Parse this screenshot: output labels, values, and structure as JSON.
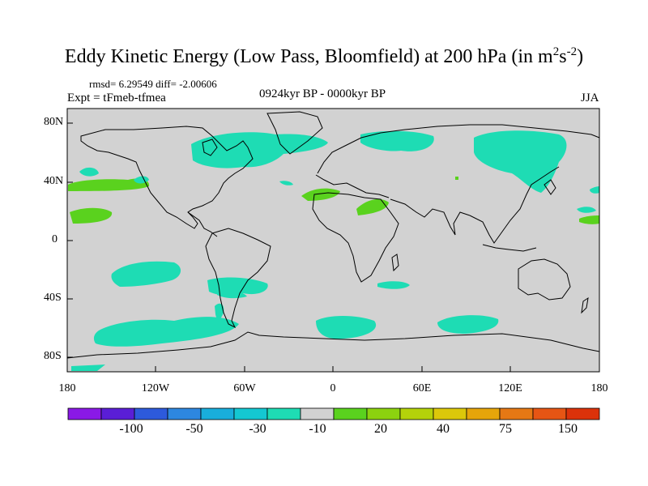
{
  "header": {
    "title_main": "Eddy Kinetic Energy (Low Pass, Bloomfield) at 200 hPa (in m",
    "title_sup1": "2",
    "title_mid": "s",
    "title_sup2": "-2",
    "title_end": ")",
    "stats": "rmsd= 6.29549 diff= -2.00606",
    "expt": "Expt = tFmeb-tfmea",
    "period": "0924kyr BP - 0000kyr BP",
    "season": "JJA"
  },
  "axes": {
    "lat_labels": [
      "80N",
      "40N",
      "0",
      "40S",
      "80S"
    ],
    "lon_labels": [
      "180",
      "120W",
      "60W",
      "0",
      "60E",
      "120E",
      "180"
    ]
  },
  "colorbar": {
    "colors": [
      "#8a19e6",
      "#5a1ed6",
      "#2d5adc",
      "#2d87e0",
      "#19aedc",
      "#14c8d2",
      "#1edcb4",
      "#d2d2d2",
      "#5ad21e",
      "#8cd20f",
      "#b4d20a",
      "#dcc80a",
      "#e6a50a",
      "#e67814",
      "#e65514",
      "#dc320a"
    ],
    "labels": [
      "-100",
      "-50",
      "-30",
      "-10",
      "20",
      "40",
      "75",
      "150"
    ]
  },
  "map_colors": {
    "ocean_land_bg": "#d2d2d2",
    "negative": "#1edcb4",
    "positive": "#5ad21e"
  }
}
